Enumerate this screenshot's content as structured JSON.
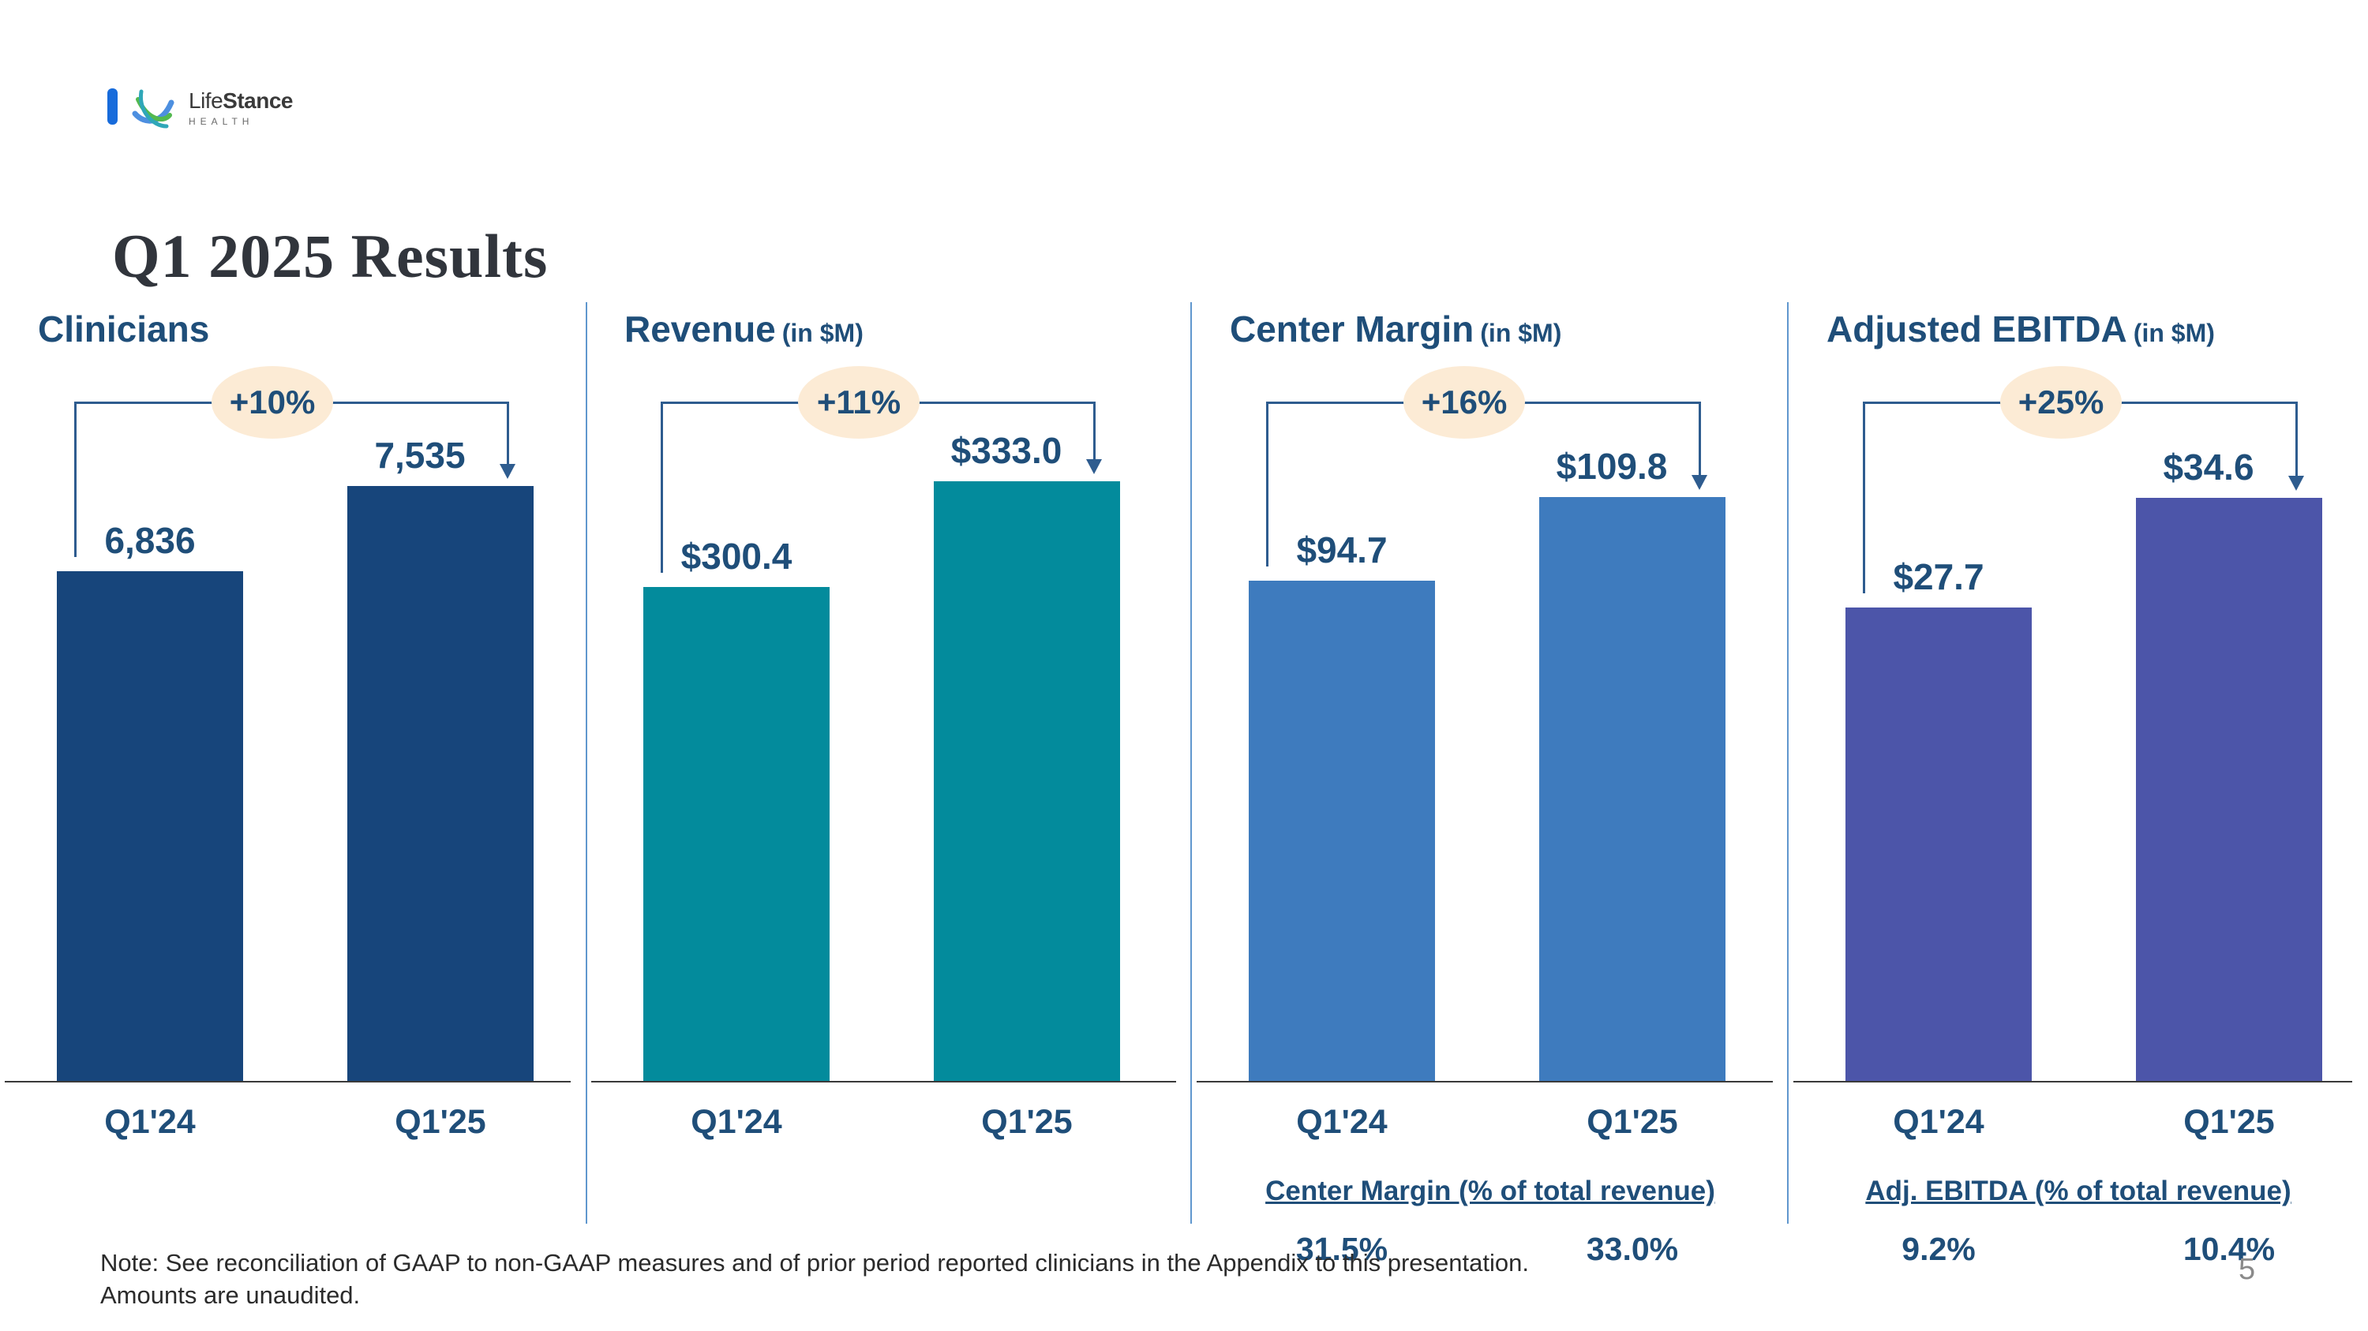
{
  "slide": {
    "logo": {
      "brand_life": "Life",
      "brand_stance": "Stance",
      "brand_sub": "HEALTH"
    },
    "title": "Q1 2025 Results",
    "note_line1": "Note:  See reconciliation of GAAP to non-GAAP measures and of prior period reported clinicians in the Appendix to this presentation.",
    "note_line2": "Amounts are unaudited.",
    "page_number": "5"
  },
  "colors": {
    "clinicians_bar": "#17457B",
    "revenue_bar": "#038B9C",
    "center_margin_bar": "#3E7BBE",
    "adjusted_ebitda_bar": "#4C55A9",
    "accent_text": "#1F4E79",
    "bracket_line": "#2E5C8F",
    "growth_pill_bg": "#FCEBD5",
    "divider_line": "#6097CE"
  },
  "chart_data": [
    {
      "type": "bar",
      "title": "Clinicians",
      "unit_label": "",
      "categories": [
        "Q1'24",
        "Q1'25"
      ],
      "values": [
        6836,
        7535
      ],
      "value_labels": [
        "6,836",
        "7,535"
      ],
      "growth_label": "+10%",
      "color": "#17457B",
      "ylim": [
        0,
        7720
      ],
      "grid": false,
      "layout": {
        "bar_height_frac": [
          0.837,
          0.977
        ]
      }
    },
    {
      "type": "bar",
      "title": "Revenue",
      "unit_label": "(in $M)",
      "categories": [
        "Q1'24",
        "Q1'25"
      ],
      "values": [
        300.4,
        333.0
      ],
      "value_labels": [
        "$300.4",
        "$333.0"
      ],
      "growth_label": "+11%",
      "color": "#038B9C",
      "ylim": [
        0,
        338
      ],
      "grid": false,
      "layout": {
        "bar_height_frac": [
          0.811,
          0.984
        ]
      }
    },
    {
      "type": "bar",
      "title": "Center Margin",
      "unit_label": "(in $M)",
      "categories": [
        "Q1'24",
        "Q1'25"
      ],
      "values": [
        94.7,
        109.8
      ],
      "value_labels": [
        "$94.7",
        "$109.8"
      ],
      "growth_label": "+16%",
      "color": "#3E7BBE",
      "ylim": [
        0,
        114.6
      ],
      "grid": false,
      "footnote": {
        "label": "Center Margin (% of total revenue)",
        "values": [
          "31.5%",
          "33.0%"
        ]
      },
      "layout": {
        "bar_height_frac": [
          0.821,
          0.958
        ]
      }
    },
    {
      "type": "bar",
      "title": "Adjusted EBITDA",
      "unit_label": "(in $M)",
      "categories": [
        "Q1'24",
        "Q1'25"
      ],
      "values": [
        27.7,
        34.6
      ],
      "value_labels": [
        "$27.7",
        "$34.6"
      ],
      "growth_label": "+25%",
      "color": "#4C55A9",
      "ylim": [
        0,
        36.2
      ],
      "grid": false,
      "footnote": {
        "label": "Adj. EBITDA (% of total revenue)",
        "values": [
          "9.2%",
          "10.4%"
        ]
      },
      "layout": {
        "bar_height_frac": [
          0.777,
          0.957
        ]
      }
    }
  ]
}
